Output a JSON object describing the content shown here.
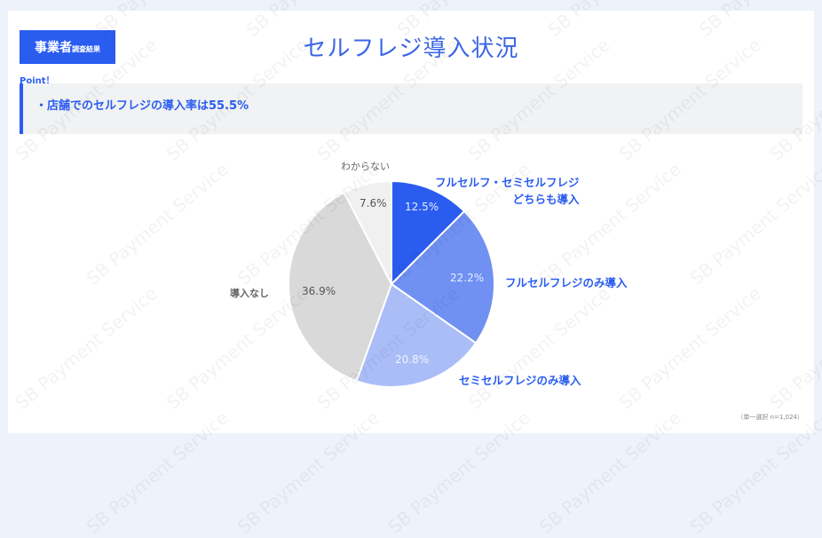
{
  "header": {
    "badge_main": "事業者",
    "badge_sub": "調査結果",
    "title": "セルフレジ導入状況"
  },
  "point": {
    "label": "Point！",
    "text": "・店舗でのセルフレジの導入率は55.5%"
  },
  "footnote": "（単一選択 n=1,024）",
  "watermark": "SB Payment Service",
  "chart_data": {
    "type": "pie",
    "title": "セルフレジ導入状況",
    "n": 1024,
    "start_angle_deg": 0,
    "direction": "clockwise",
    "categories": [
      "フルセルフ・セミセルフレジ どちらも導入",
      "フルセルフレジのみ導入",
      "セミセルフレジのみ導入",
      "導入なし",
      "わからない"
    ],
    "values": [
      12.5,
      22.2,
      20.8,
      36.9,
      7.6
    ],
    "labels": [
      "12.5%",
      "22.2%",
      "20.8%",
      "36.9%",
      "7.6%"
    ],
    "colors": [
      "#2a5cf0",
      "#7090f2",
      "#aabdf7",
      "#d9d9d9",
      "#f0f0f0"
    ]
  },
  "legend": {
    "both_line1": "フルセルフ・セミセルフレジ",
    "both_line2": "どちらも導入",
    "full_only": "フルセルフレジのみ導入",
    "semi_only": "セミセルフレジのみ導入",
    "none": "導入なし",
    "unknown": "わからない"
  }
}
